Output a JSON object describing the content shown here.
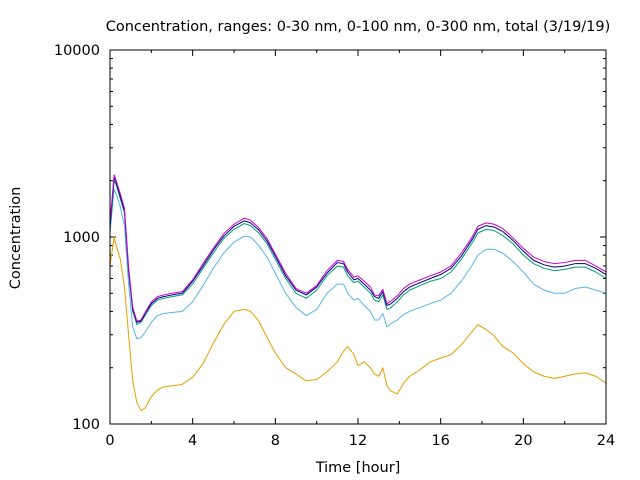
{
  "chart_data": {
    "type": "line",
    "title": "Concentration, ranges: 0-30 nm, 0-100 nm, 0-300 nm, total (3/19/19)",
    "xlabel": "Time [hour]",
    "ylabel": "Concentration",
    "xlim": [
      0,
      24
    ],
    "ylim": [
      100,
      10000
    ],
    "y_scale": "log",
    "x_ticks": [
      0,
      4,
      8,
      12,
      16,
      20,
      24
    ],
    "x_tick_labels": [
      "0",
      "4",
      "8",
      "12",
      "16",
      "20",
      "24"
    ],
    "y_ticks": [
      100,
      1000,
      10000
    ],
    "y_tick_labels": [
      "100",
      "1000",
      "10000"
    ],
    "grid": false,
    "legend": "none",
    "colors": [
      "#e69f00",
      "#56b4e9",
      "#009e73",
      "#000080",
      "#cc00cc"
    ],
    "x": [
      0,
      0.2,
      0.3,
      0.5,
      0.7,
      0.9,
      1.1,
      1.3,
      1.5,
      1.7,
      2.0,
      2.3,
      2.6,
      3.0,
      3.5,
      4.0,
      4.5,
      5.0,
      5.5,
      6.0,
      6.5,
      6.8,
      7.2,
      7.6,
      8.0,
      8.5,
      9.0,
      9.5,
      10.0,
      10.5,
      11.0,
      11.3,
      11.5,
      11.8,
      12.0,
      12.3,
      12.6,
      12.8,
      13.0,
      13.2,
      13.4,
      13.6,
      13.9,
      14.2,
      14.5,
      15.0,
      15.5,
      16.0,
      16.5,
      17.0,
      17.5,
      17.8,
      18.2,
      18.6,
      19.0,
      19.5,
      20.0,
      20.5,
      21.0,
      21.5,
      22.0,
      22.5,
      23.0,
      23.5,
      24.0
    ],
    "series": [
      {
        "values": [
          700,
          1000,
          900,
          760,
          540,
          300,
          170,
          130,
          118,
          122,
          140,
          152,
          158,
          160,
          163,
          178,
          210,
          270,
          340,
          400,
          410,
          400,
          355,
          290,
          240,
          200,
          185,
          170,
          173,
          190,
          215,
          245,
          260,
          235,
          205,
          215,
          200,
          185,
          180,
          200,
          160,
          150,
          145,
          165,
          180,
          195,
          215,
          225,
          235,
          265,
          310,
          340,
          320,
          295,
          260,
          240,
          210,
          190,
          180,
          175,
          180,
          185,
          188,
          180,
          165
        ]
      },
      {
        "values": [
          1050,
          1800,
          1700,
          1450,
          1150,
          560,
          330,
          285,
          290,
          310,
          350,
          380,
          390,
          395,
          400,
          450,
          550,
          680,
          820,
          940,
          1010,
          1000,
          900,
          780,
          640,
          500,
          420,
          380,
          410,
          500,
          560,
          560,
          500,
          460,
          470,
          430,
          400,
          360,
          360,
          390,
          330,
          345,
          360,
          385,
          400,
          420,
          440,
          460,
          500,
          580,
          700,
          800,
          860,
          860,
          820,
          740,
          650,
          560,
          520,
          500,
          500,
          530,
          540,
          520,
          500
        ]
      },
      {
        "values": [
          1100,
          2000,
          1900,
          1600,
          1350,
          650,
          400,
          340,
          350,
          380,
          430,
          460,
          470,
          480,
          490,
          560,
          680,
          820,
          980,
          1100,
          1180,
          1150,
          1050,
          920,
          760,
          600,
          500,
          470,
          520,
          620,
          700,
          690,
          620,
          570,
          580,
          540,
          500,
          460,
          450,
          490,
          410,
          420,
          450,
          490,
          520,
          550,
          580,
          600,
          650,
          760,
          920,
          1050,
          1100,
          1080,
          1020,
          920,
          800,
          720,
          680,
          660,
          670,
          690,
          690,
          650,
          600
        ]
      },
      {
        "values": [
          1150,
          2100,
          1950,
          1650,
          1380,
          670,
          410,
          350,
          355,
          390,
          440,
          470,
          480,
          490,
          500,
          580,
          700,
          850,
          1010,
          1140,
          1220,
          1190,
          1090,
          950,
          790,
          620,
          520,
          490,
          540,
          640,
          730,
          720,
          650,
          590,
          600,
          560,
          520,
          480,
          470,
          510,
          430,
          440,
          470,
          510,
          540,
          570,
          600,
          630,
          680,
          790,
          960,
          1100,
          1150,
          1130,
          1070,
          960,
          840,
          750,
          710,
          690,
          700,
          720,
          720,
          680,
          630
        ]
      },
      {
        "values": [
          1200,
          2150,
          2000,
          1700,
          1420,
          690,
          420,
          355,
          360,
          395,
          450,
          480,
          490,
          500,
          510,
          590,
          720,
          870,
          1040,
          1170,
          1260,
          1230,
          1120,
          980,
          810,
          640,
          530,
          500,
          550,
          660,
          750,
          740,
          670,
          610,
          620,
          580,
          540,
          490,
          485,
          525,
          440,
          455,
          485,
          530,
          560,
          590,
          620,
          650,
          700,
          820,
          990,
          1140,
          1190,
          1170,
          1110,
          990,
          870,
          780,
          740,
          720,
          730,
          750,
          750,
          700,
          650
        ]
      }
    ]
  }
}
